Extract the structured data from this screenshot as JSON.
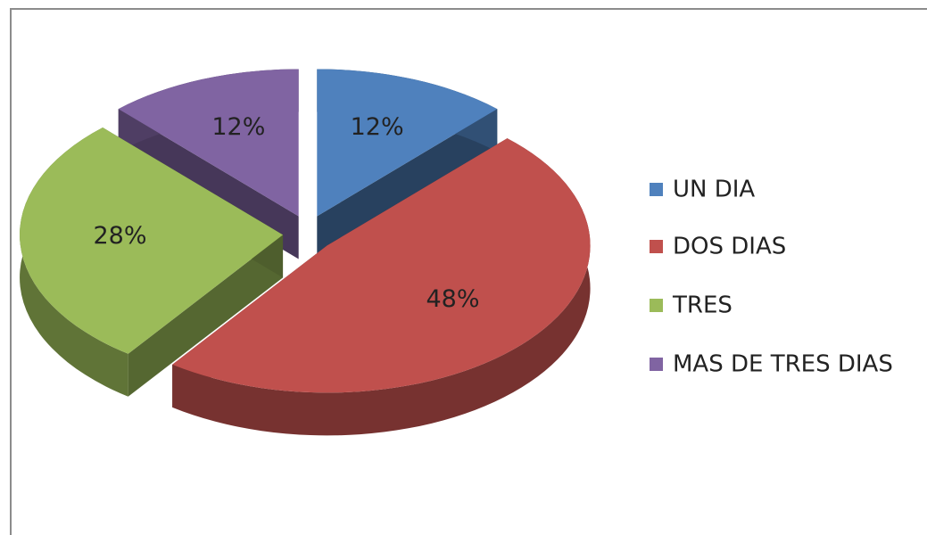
{
  "chart_data": {
    "type": "pie",
    "categories": [
      "UN DIA",
      "DOS DIAS",
      "TRES",
      "MAS DE TRES DIAS"
    ],
    "values": [
      12,
      48,
      28,
      12
    ],
    "value_labels": [
      "12%",
      "48%",
      "28%",
      "12%"
    ],
    "colors": [
      "#4f81bd",
      "#c0504d",
      "#9bbb59",
      "#8064a2"
    ],
    "legend": "right"
  }
}
